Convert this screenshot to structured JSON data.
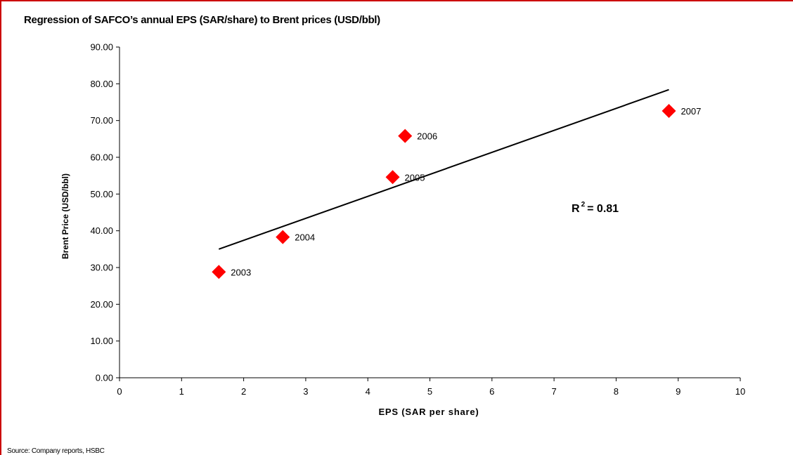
{
  "chart_data": {
    "type": "scatter",
    "title": "Regression of SAFCO’s annual EPS (SAR/share) to Brent prices (USD/bbl)",
    "xlabel": "EPS (SAR per share)",
    "ylabel": "Brent Price (USD/bbl)",
    "xlim": [
      0,
      10
    ],
    "ylim": [
      0,
      90
    ],
    "xticks": [
      "0",
      "1",
      "2",
      "3",
      "4",
      "5",
      "6",
      "7",
      "8",
      "9",
      "10"
    ],
    "yticks": [
      "0.00",
      "10.00",
      "20.00",
      "30.00",
      "40.00",
      "50.00",
      "60.00",
      "70.00",
      "80.00",
      "90.00"
    ],
    "grid": false,
    "marker_color": "#ff0000",
    "trendline_color": "#000000",
    "points": [
      {
        "label": "2003",
        "x": 1.6,
        "y": 28.8
      },
      {
        "label": "2004",
        "x": 2.63,
        "y": 38.3
      },
      {
        "label": "2005",
        "x": 4.4,
        "y": 54.6
      },
      {
        "label": "2006",
        "x": 4.6,
        "y": 65.8
      },
      {
        "label": "2007",
        "x": 8.85,
        "y": 72.6
      }
    ],
    "trendline": {
      "x1": 1.6,
      "y1": 35.0,
      "x2": 8.85,
      "y2": 78.4
    },
    "r2_prefix": "R",
    "r2_exponent": "2",
    "r2_value": "= 0.81"
  },
  "source": "Source: Company reports, HSBC"
}
